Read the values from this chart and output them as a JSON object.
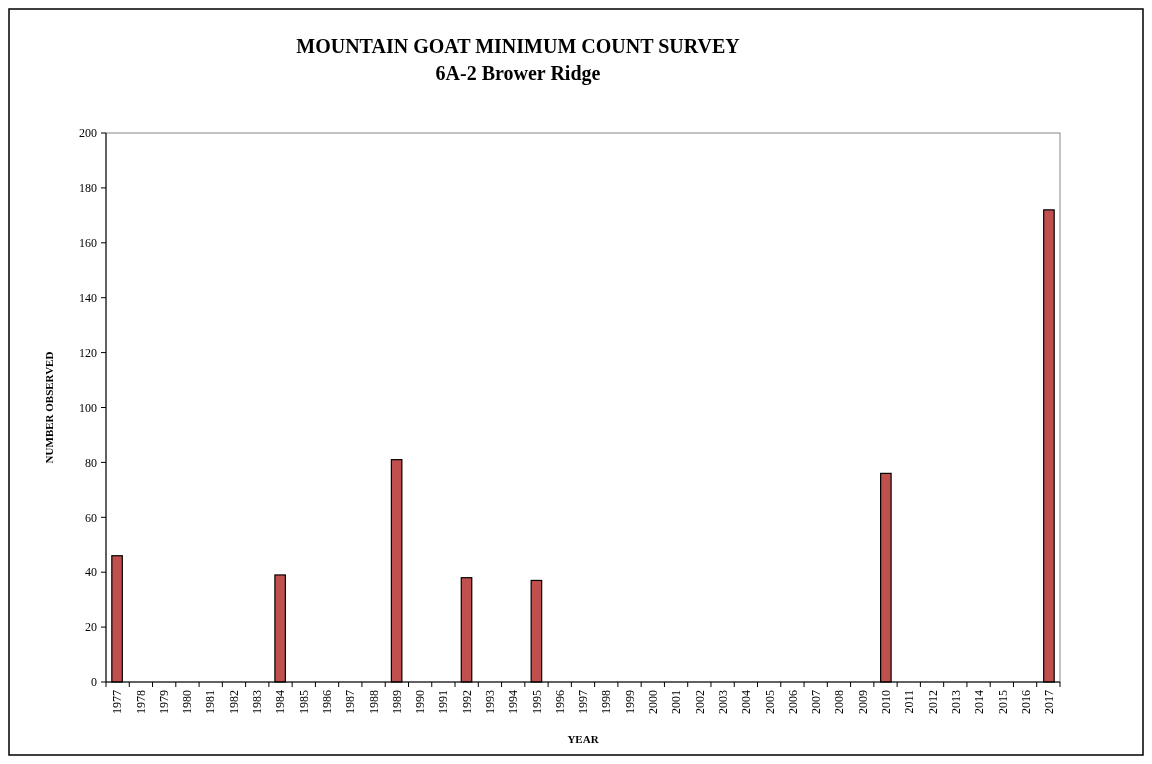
{
  "chart_data": {
    "type": "bar",
    "title": "MOUNTAIN GOAT MINIMUM COUNT SURVEY",
    "subtitle": "6A-2 Brower Ridge",
    "xlabel": "YEAR",
    "ylabel": "NUMBER OBSERVED",
    "categories": [
      "1977",
      "1978",
      "1979",
      "1980",
      "1981",
      "1982",
      "1983",
      "1984",
      "1985",
      "1986",
      "1987",
      "1988",
      "1989",
      "1990",
      "1991",
      "1992",
      "1993",
      "1994",
      "1995",
      "1996",
      "1997",
      "1998",
      "1999",
      "2000",
      "2001",
      "2002",
      "2003",
      "2004",
      "2005",
      "2006",
      "2007",
      "2008",
      "2009",
      "2010",
      "2011",
      "2012",
      "2013",
      "2014",
      "2015",
      "2016",
      "2017"
    ],
    "values": [
      46,
      null,
      null,
      null,
      null,
      null,
      null,
      39,
      null,
      null,
      null,
      null,
      81,
      null,
      null,
      38,
      null,
      null,
      37,
      null,
      null,
      null,
      null,
      null,
      null,
      null,
      null,
      null,
      null,
      null,
      null,
      null,
      null,
      76,
      null,
      null,
      null,
      null,
      null,
      null,
      172
    ],
    "color": "#c0504d",
    "ylim": [
      0,
      200
    ],
    "yticks": [
      0,
      20,
      40,
      60,
      80,
      100,
      120,
      140,
      160,
      180,
      200
    ],
    "grid": false
  }
}
